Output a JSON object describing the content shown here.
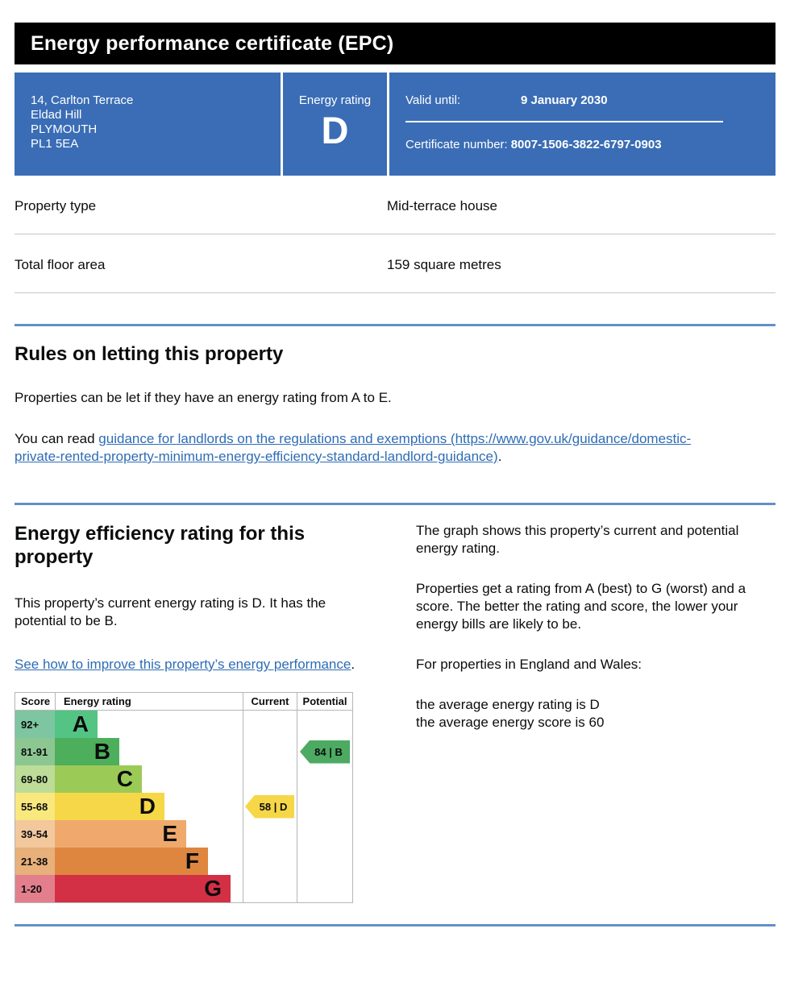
{
  "header": {
    "title": "Energy performance certificate (EPC)"
  },
  "banner": {
    "background_color": "#3a6db5",
    "address_line1": "14, Carlton Terrace",
    "address_line2": "Eldad Hill",
    "address_line3": "PLYMOUTH",
    "address_line4": "PL1 5EA",
    "energy_rating_label": "Energy rating",
    "energy_rating_value": "D",
    "valid_until_label": "Valid until:",
    "valid_until_value": "9 January 2030",
    "certificate_number_label": "Certificate number:",
    "certificate_number_value": "8007-1506-3822-6797-0903"
  },
  "summary_rows": [
    {
      "label": "Property type",
      "value": "Mid-terrace house"
    },
    {
      "label": "Total floor area",
      "value": "159 square metres"
    }
  ],
  "rules_section": {
    "heading": "Rules on letting this property",
    "paragraph1": "Properties can be let if they have an energy rating from A to E.",
    "paragraph2_prefix": "You can read ",
    "link_text": "guidance for landlords on the regulations and exemptions (https://www.gov.uk/guidance/domestic-private-rented-property-minimum-energy-efficiency-standard-landlord-guidance)",
    "paragraph2_suffix": "."
  },
  "rating_section": {
    "heading": "Energy efficiency rating for this property",
    "intro": "This property’s current energy rating is D. It has the potential to be B.",
    "improve_link_text": "See how to improve this property’s energy performance",
    "improve_link_suffix": ".",
    "right": {
      "p1": "The graph shows this property’s current and potential energy rating.",
      "p2": "Properties get a rating from A (best) to G (worst) and a score. The better the rating and score, the lower your energy bills are likely to be.",
      "p3": "For properties in England and Wales:",
      "avg_rating": "the average energy rating is D",
      "avg_score": "the average energy score is 60"
    }
  },
  "chart_data": {
    "type": "bar",
    "title": "Energy efficiency rating chart",
    "columns": [
      "Score",
      "Energy rating",
      "Current",
      "Potential"
    ],
    "bands": [
      {
        "score_range": "92+",
        "letter": "A",
        "cell_color": "#7ec5a2",
        "bar_color": "#53c483"
      },
      {
        "score_range": "81-91",
        "letter": "B",
        "cell_color": "#8cc791",
        "bar_color": "#4daf5b"
      },
      {
        "score_range": "69-80",
        "letter": "C",
        "cell_color": "#bcdc97",
        "bar_color": "#9cca57"
      },
      {
        "score_range": "55-68",
        "letter": "D",
        "cell_color": "#f9e87e",
        "bar_color": "#f6d747"
      },
      {
        "score_range": "39-54",
        "letter": "E",
        "cell_color": "#f3c89d",
        "bar_color": "#efa96c"
      },
      {
        "score_range": "21-38",
        "letter": "F",
        "cell_color": "#e8b07a",
        "bar_color": "#de8640"
      },
      {
        "score_range": "1-20",
        "letter": "G",
        "cell_color": "#e37f8d",
        "bar_color": "#d33045"
      }
    ],
    "current": {
      "score": 58,
      "letter": "D",
      "label": "58 | D",
      "band_index": 3,
      "color": "#f6d747"
    },
    "potential": {
      "score": 84,
      "letter": "B",
      "label": "84 | B",
      "band_index": 1,
      "color": "#4caa63"
    },
    "legend_position": "none",
    "grid": false
  },
  "colors": {
    "banner_blue": "#3a6db5",
    "section_rule_blue": "#6191c8",
    "link_blue": "#2e6cb5",
    "chart_border_gray": "#b3b6b8"
  }
}
